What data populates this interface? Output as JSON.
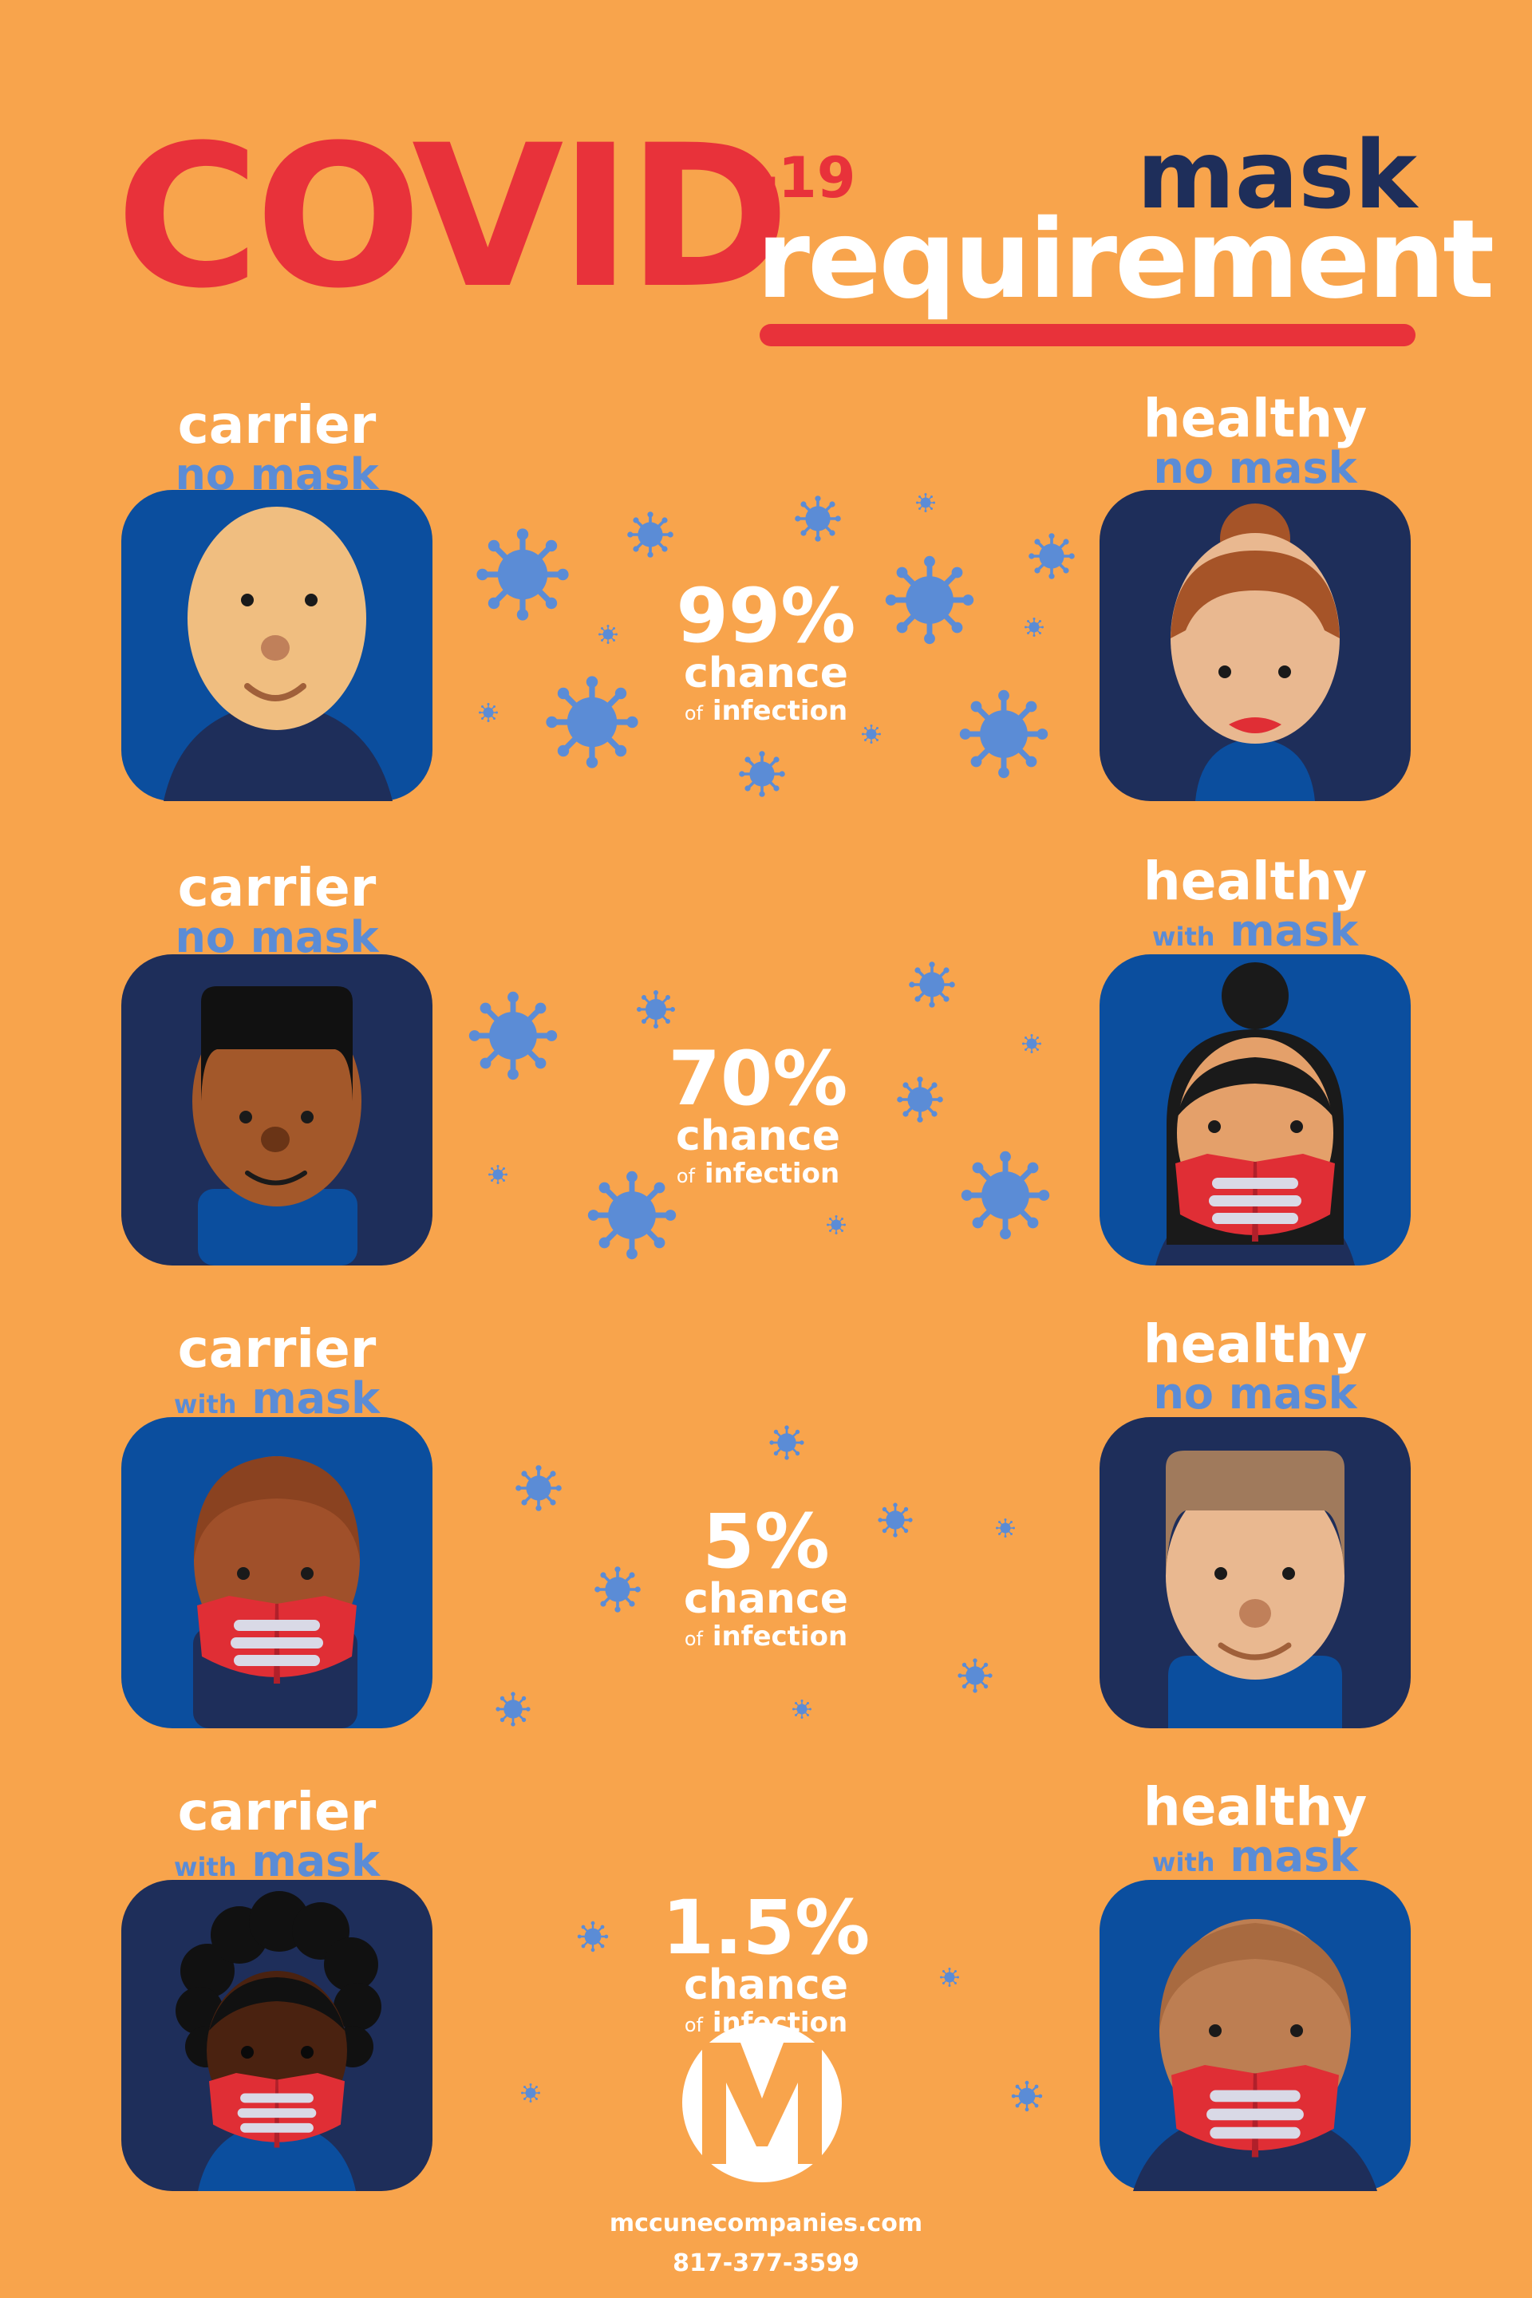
{
  "header": {
    "covid": "COVID",
    "covid_suffix": "-19",
    "mask": "mask",
    "requirement": "requirement"
  },
  "scenarios": [
    {
      "carrier": "carrier",
      "carrier_state": "no mask",
      "healthy": "healthy",
      "healthy_state": "no mask",
      "chance": "99%",
      "chance_word": "chance",
      "of": "of",
      "infection": "infection"
    },
    {
      "carrier": "carrier",
      "carrier_state": "no mask",
      "healthy": "healthy",
      "healthy_with": "with",
      "healthy_mask": "mask",
      "chance": "70%",
      "chance_word": "chance",
      "of": "of",
      "infection": "infection"
    },
    {
      "carrier": "carrier",
      "carrier_with": "with",
      "carrier_mask": "mask",
      "healthy": "healthy",
      "healthy_state": "no mask",
      "chance": "5%",
      "chance_word": "chance",
      "of": "of",
      "infection": "infection"
    },
    {
      "carrier": "carrier",
      "carrier_with": "with",
      "carrier_mask": "mask",
      "healthy": "healthy",
      "healthy_with": "with",
      "healthy_mask": "mask",
      "chance": "1.5%",
      "chance_word": "chance",
      "of": "of",
      "infection": "infection"
    }
  ],
  "footer": {
    "website": "mccunecompanies.com",
    "phone": "817-377-3599"
  },
  "colors": {
    "background": "#F8A44C",
    "accent_red": "#E8323A",
    "navy": "#1E2E5A",
    "blue": "#0B4E9E",
    "virus": "#5B8CD6"
  },
  "icons": [
    "virus-icon",
    "person-avatar-icon",
    "face-mask-icon",
    "company-logo-icon"
  ]
}
